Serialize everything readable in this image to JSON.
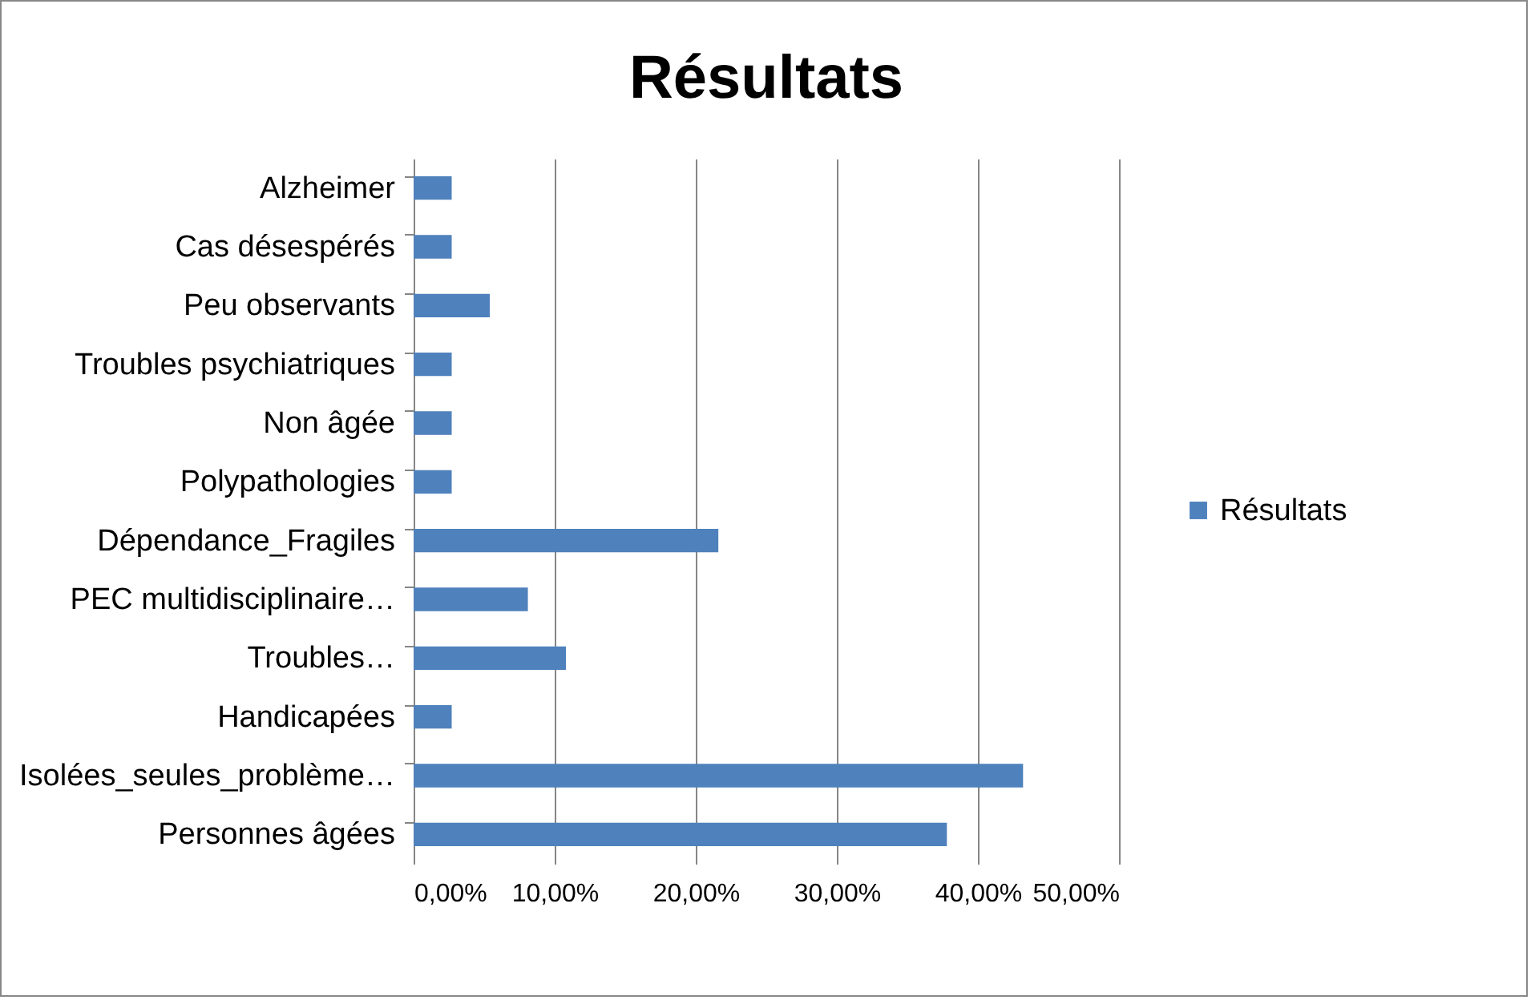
{
  "chart_data": {
    "type": "bar",
    "orientation": "horizontal",
    "title": "Résultats",
    "categories": [
      "Alzheimer",
      "Cas désespérés",
      "Peu observants",
      "Troubles psychiatriques",
      "Non âgée",
      "Polypathologies",
      "Dépendance_Fragiles",
      "PEC multidisciplinaire…",
      "Troubles…",
      "Handicapées",
      "Isolées_seules_problème…",
      "Personnes âgées"
    ],
    "series": [
      {
        "name": "Résultats",
        "color": "#4f81bd",
        "values": [
          2.7,
          2.7,
          5.4,
          2.7,
          2.7,
          2.7,
          21.6,
          8.1,
          10.8,
          2.7,
          43.2,
          37.8
        ]
      }
    ],
    "xlim": [
      0,
      50
    ],
    "xticks": [
      {
        "value": 0,
        "label": "0,00%"
      },
      {
        "value": 10,
        "label": "10,00%"
      },
      {
        "value": 20,
        "label": "20,00%"
      },
      {
        "value": 30,
        "label": "30,00%"
      },
      {
        "value": 40,
        "label": "40,00%"
      },
      {
        "value": 50,
        "label": "50,00%"
      }
    ],
    "grid": "x",
    "legend": "right"
  }
}
